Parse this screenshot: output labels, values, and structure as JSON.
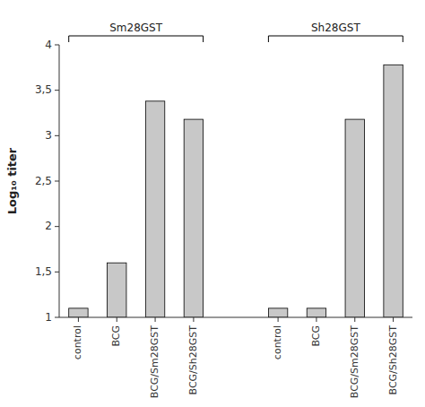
{
  "chart_data": {
    "type": "bar",
    "categories": [
      "control",
      "BCG",
      "BCG/Sm28GST",
      "BCG/Sh28GST",
      "control",
      "BCG",
      "BCG/Sm28GST",
      "BCG/Sh28GST"
    ],
    "values": [
      1.1,
      1.6,
      3.38,
      3.18,
      1.1,
      1.1,
      3.18,
      3.78
    ],
    "color": "#c8c8c8",
    "ylim": [
      1.0,
      4.0
    ],
    "yticks": [
      1,
      {
        "value": 1.5,
        "label": "1,5"
      },
      2,
      {
        "value": 2.5,
        "label": "2,5"
      },
      3,
      {
        "value": 3.5,
        "label": "3,5"
      },
      4
    ],
    "ylabel": "Log₁₀ titer",
    "annotations": [
      "Sm28GST",
      "Sh28GST"
    ],
    "grid": false
  }
}
